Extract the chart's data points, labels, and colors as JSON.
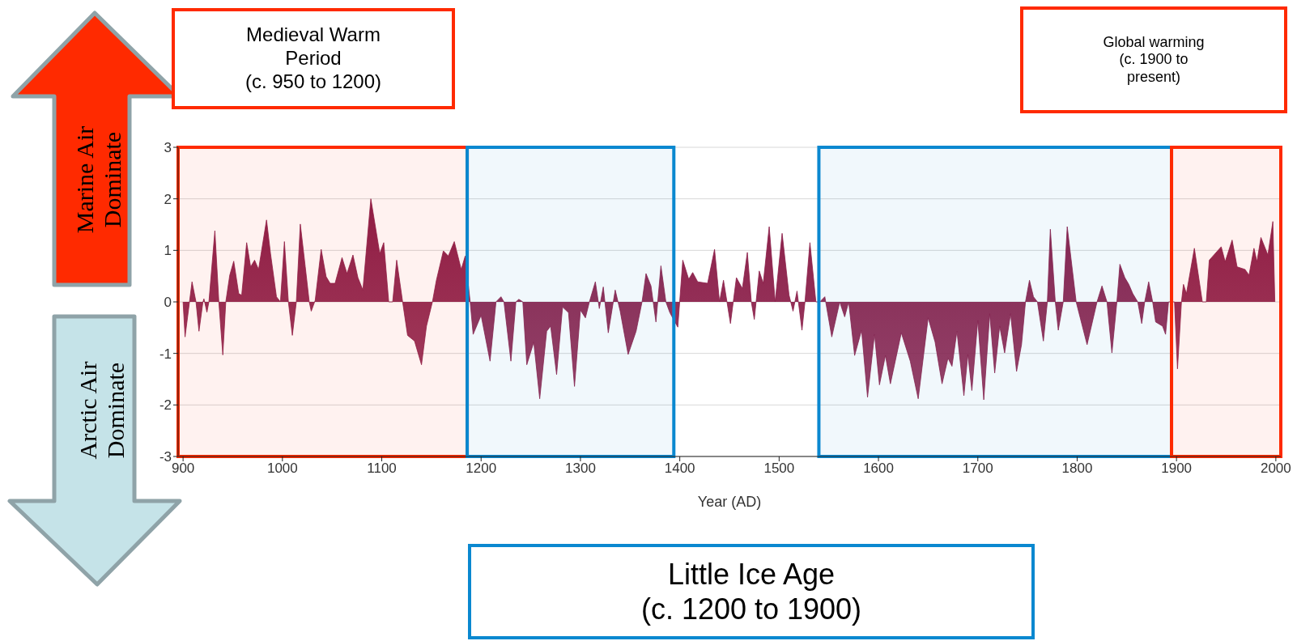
{
  "chart_data": {
    "type": "area",
    "xlabel": "Year (AD)",
    "annotations": [
      "Marine Air\nDominate",
      "Arctic Air\nDominate",
      "Little Ice Age\n(c. 1200 to 1900)",
      "Global warming\n(c. 1900 to\npresent)"
    ],
    "xlim": [
      895,
      2005
    ],
    "xticks": [
      900,
      1000,
      1100,
      1200,
      1300,
      1400,
      1500,
      1600,
      1700,
      1800,
      1900,
      2000
    ],
    "ylim": [
      -3,
      3
    ],
    "yticks": [
      -3,
      -2,
      -1,
      0,
      1,
      2,
      3
    ],
    "grid": "y",
    "bands": [
      {
        "axis": "x",
        "from": 895,
        "to": 1186,
        "label": "Medieval Warm\nPeriod\n(c. 950 to 1200)",
        "color": "#ff2a00"
      },
      {
        "axis": "x",
        "from": 1186,
        "to": 1394,
        "color": "#0a88d0"
      },
      {
        "axis": "x",
        "from": 1540,
        "to": 1895,
        "color": "#0a88d0"
      },
      {
        "axis": "x",
        "from": 1895,
        "to": 2005,
        "color": "#ff2a00"
      }
    ],
    "series": [
      {
        "color": "#8a1d48",
        "x": [
          900,
          902,
          909,
          913,
          916,
          920,
          921,
          924,
          926,
          932,
          936,
          940,
          943,
          947,
          951,
          956,
          959,
          964,
          968,
          972,
          976,
          984,
          988,
          994,
          998,
          1002,
          1006,
          1010,
          1014,
          1018,
          1023,
          1027,
          1029,
          1033,
          1039,
          1044,
          1048,
          1053,
          1060,
          1065,
          1071,
          1076,
          1081,
          1089,
          1098,
          1102,
          1107,
          1111,
          1115,
          1121,
          1126,
          1133,
          1140,
          1145,
          1151,
          1155,
          1162,
          1167,
          1173,
          1180,
          1184,
          1189,
          1192,
          1200,
          1209,
          1215,
          1220,
          1223,
          1230,
          1235,
          1238,
          1242,
          1246,
          1253,
          1259,
          1266,
          1270,
          1276,
          1282,
          1288,
          1294,
          1300,
          1305,
          1309,
          1315,
          1319,
          1323,
          1328,
          1335,
          1340,
          1348,
          1356,
          1362,
          1366,
          1371,
          1376,
          1381,
          1386,
          1390,
          1398,
          1403,
          1409,
          1413,
          1418,
          1428,
          1435,
          1440,
          1444,
          1451,
          1457,
          1463,
          1468,
          1472,
          1475,
          1480,
          1484,
          1490,
          1496,
          1503,
          1510,
          1514,
          1518,
          1523,
          1526,
          1531,
          1537,
          1541,
          1546,
          1553,
          1561,
          1566,
          1570,
          1576,
          1583,
          1589,
          1596,
          1601,
          1607,
          1612,
          1623,
          1632,
          1640,
          1650,
          1657,
          1664,
          1670,
          1674,
          1679,
          1686,
          1690,
          1694,
          1700,
          1706,
          1712,
          1717,
          1722,
          1727,
          1733,
          1739,
          1744,
          1748,
          1752,
          1756,
          1760,
          1766,
          1770,
          1773,
          1778,
          1781,
          1786,
          1790,
          1799,
          1810,
          1820,
          1825,
          1830,
          1835,
          1840,
          1843,
          1848,
          1852,
          1856,
          1861,
          1865,
          1868,
          1872,
          1876,
          1879,
          1886,
          1889,
          1892,
          1898,
          1901,
          1905,
          1907,
          1910,
          1918,
          1926,
          1930,
          1933,
          1945,
          1949,
          1956,
          1961,
          1969,
          1973,
          1978,
          1981,
          1985,
          1992,
          1997,
          1999
        ],
        "values": [
          0,
          -0.68,
          0.39,
          0,
          -0.57,
          0,
          0.06,
          -0.2,
          0,
          1.38,
          0,
          -1.03,
          0,
          0.52,
          0.79,
          0.16,
          0.13,
          1.15,
          0.68,
          0.81,
          0.63,
          1.59,
          0.94,
          0.1,
          0,
          1.17,
          0,
          -0.65,
          0,
          1.51,
          0.68,
          0,
          -0.18,
          0.03,
          1.02,
          0.49,
          0.36,
          0.36,
          0.86,
          0.55,
          0.91,
          0.47,
          0.23,
          2.0,
          0.94,
          1.15,
          0,
          0,
          0.81,
          0,
          -0.65,
          -0.76,
          -1.22,
          -0.47,
          0,
          0.42,
          0.99,
          0.89,
          1.17,
          0.63,
          0.89,
          0,
          -0.63,
          -0.26,
          -1.15,
          0,
          0.1,
          0,
          -1.15,
          0,
          0.05,
          0,
          -1.22,
          -0.78,
          -1.88,
          -0.57,
          -0.47,
          -1.41,
          -0.1,
          -0.21,
          -1.64,
          -0.16,
          -0.31,
          0,
          0.39,
          -0.13,
          0.29,
          -0.6,
          0.23,
          -0.18,
          -1.02,
          -0.57,
          0,
          0.55,
          0.31,
          -0.39,
          0.7,
          0,
          -0.21,
          -0.49,
          0.81,
          0.44,
          0.57,
          0.39,
          0.36,
          1.02,
          0,
          0.42,
          -0.42,
          0.47,
          0.26,
          0.96,
          0,
          -0.34,
          0.6,
          0.36,
          1.46,
          0,
          1.33,
          0.13,
          -0.18,
          0.21,
          -0.55,
          0,
          1.15,
          0,
          0,
          0.1,
          -0.68,
          0,
          -0.29,
          0,
          -1.04,
          -0.55,
          -1.85,
          -0.63,
          -1.61,
          -1.04,
          -1.59,
          -0.6,
          -1.15,
          -1.88,
          -0.31,
          -0.78,
          -1.59,
          -1.09,
          -1.25,
          -0.57,
          -1.82,
          -1.02,
          -1.72,
          -0.36,
          -1.9,
          -0.23,
          -1.38,
          -0.47,
          -0.99,
          -0.23,
          -1.35,
          -0.83,
          0,
          0.42,
          0.1,
          0,
          -0.76,
          0,
          1.41,
          0,
          -0.55,
          0,
          1.46,
          0,
          -0.83,
          0,
          0.31,
          0,
          -0.99,
          0,
          0.73,
          0.47,
          0.34,
          0.16,
          0,
          -0.42,
          0,
          0.39,
          0,
          -0.39,
          -0.47,
          -0.63,
          0,
          0,
          -1.3,
          0,
          0.34,
          0.16,
          1.04,
          0,
          0,
          0.81,
          1.07,
          0.78,
          1.2,
          0.68,
          0.63,
          0.52,
          1.04,
          0.78,
          1.25,
          0.91,
          1.56,
          0
        ]
      }
    ]
  }
}
